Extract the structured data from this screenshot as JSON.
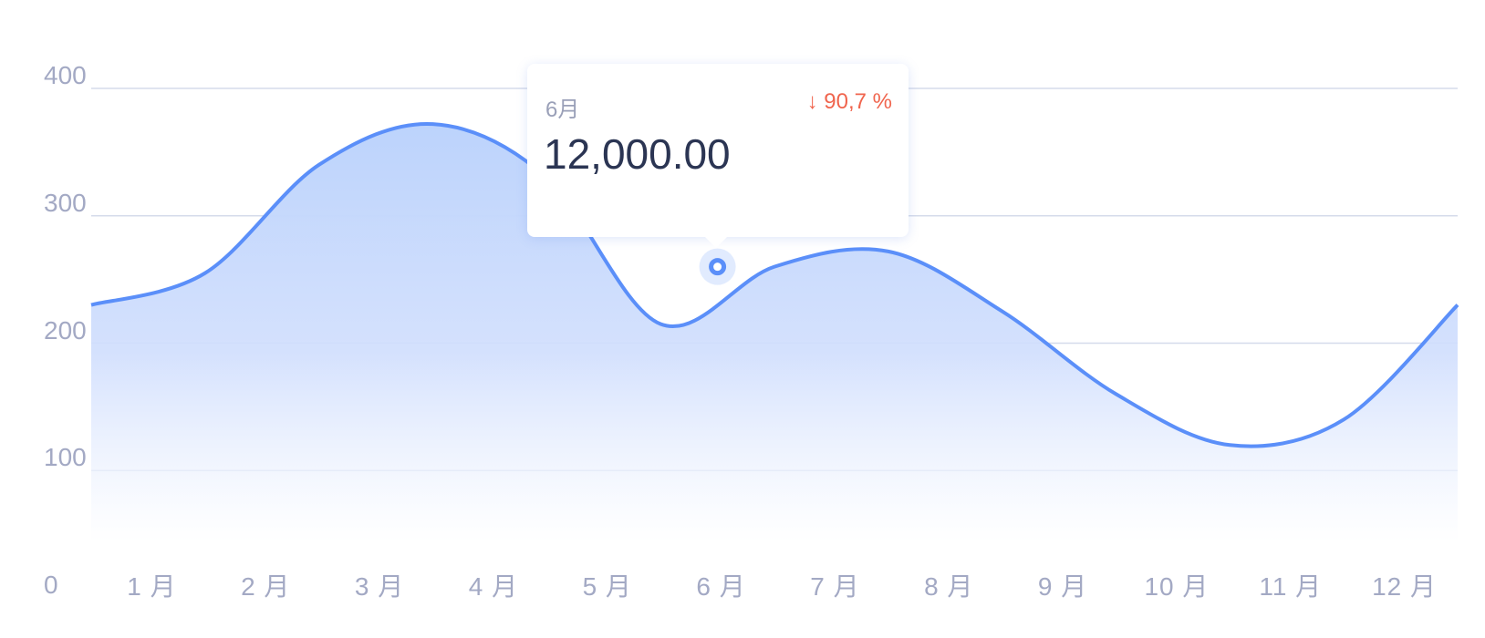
{
  "chart_data": {
    "type": "area",
    "categories": [
      "1 月",
      "2 月",
      "3 月",
      "4 月",
      "5 月",
      "6 月",
      "7 月",
      "8 月",
      "9 月",
      "10 月",
      "11 月",
      "12 月"
    ],
    "x": [
      0.5,
      1.5,
      2.5,
      3.5,
      4.5,
      5.5,
      6.5,
      7.5,
      8.5,
      9.5,
      10.5,
      11.5,
      12.5
    ],
    "y": [
      230,
      255,
      340,
      372,
      330,
      215,
      260,
      272,
      225,
      160,
      120,
      140,
      230
    ],
    "yticks": [
      "0",
      "100",
      "200",
      "300",
      "400"
    ],
    "ylim": [
      0,
      400
    ],
    "grid": true,
    "highlight": {
      "month": "6 月",
      "value": 260
    },
    "colors": {
      "line": "#5b8ff9",
      "fill": "#bcd3fc",
      "grid": "#d5dbeb",
      "ticks": "#a3a9c4"
    }
  },
  "tooltip": {
    "month": "6月",
    "change": "↓ 90,7 %",
    "value": "12,000.00",
    "change_color": "#f0654e"
  }
}
